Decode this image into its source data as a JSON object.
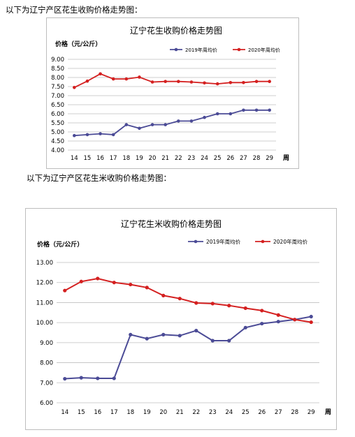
{
  "captions": {
    "peanut": "以下为辽宁产区花生收购价格走势图：",
    "kernel": "以下为辽宁产区花生米收购价格走势图："
  },
  "colors": {
    "series_2019": "#4b4b96",
    "series_2020": "#d42020",
    "grid": "#bfbfbf"
  },
  "chart_data": [
    {
      "type": "line",
      "title": "辽宁花生收购价格走势图",
      "ylabel": "价格（元/公斤）",
      "xlabel": "周",
      "x": [
        14,
        15,
        16,
        17,
        18,
        19,
        20,
        21,
        22,
        23,
        24,
        25,
        26,
        27,
        28,
        29
      ],
      "ylim": [
        4.0,
        9.0
      ],
      "yticks": [
        "4.00",
        "4.50",
        "5.00",
        "5.50",
        "6.00",
        "6.50",
        "7.00",
        "7.50",
        "8.00",
        "8.50",
        "9.00"
      ],
      "grid": true,
      "legend": "top-right",
      "series": [
        {
          "name": "2019年周均价",
          "color": "#4b4b96",
          "values": [
            4.8,
            4.85,
            4.9,
            4.85,
            5.4,
            5.2,
            5.4,
            5.4,
            5.6,
            5.6,
            5.8,
            6.0,
            6.0,
            6.2,
            6.2,
            6.2
          ]
        },
        {
          "name": "2020年周均价",
          "color": "#d42020",
          "values": [
            7.45,
            7.8,
            8.2,
            7.92,
            7.92,
            8.02,
            7.75,
            7.78,
            7.78,
            7.75,
            7.7,
            7.65,
            7.72,
            7.72,
            7.78,
            7.78
          ]
        }
      ]
    },
    {
      "type": "line",
      "title": "辽宁花生米收购价格走势图",
      "ylabel": "价格（元/公斤）",
      "xlabel": "周",
      "x": [
        14,
        15,
        16,
        17,
        18,
        19,
        20,
        21,
        22,
        23,
        24,
        25,
        26,
        27,
        28,
        29
      ],
      "ylim": [
        6.0,
        13.0
      ],
      "yticks": [
        "6.00",
        "7.00",
        "8.00",
        "9.00",
        "10.00",
        "11.00",
        "12.00",
        "13.00"
      ],
      "grid": true,
      "legend": "top-right",
      "series": [
        {
          "name": "2019年周均价",
          "color": "#4b4b96",
          "values": [
            7.2,
            7.25,
            7.22,
            7.22,
            9.4,
            9.2,
            9.4,
            9.35,
            9.6,
            9.1,
            9.1,
            9.75,
            9.95,
            10.05,
            10.15,
            10.3
          ]
        },
        {
          "name": "2020年周均价",
          "color": "#d42020",
          "values": [
            11.6,
            12.05,
            12.2,
            12.0,
            11.9,
            11.75,
            11.35,
            11.2,
            10.98,
            10.95,
            10.85,
            10.72,
            10.6,
            10.38,
            10.15,
            10.02
          ]
        }
      ]
    }
  ]
}
